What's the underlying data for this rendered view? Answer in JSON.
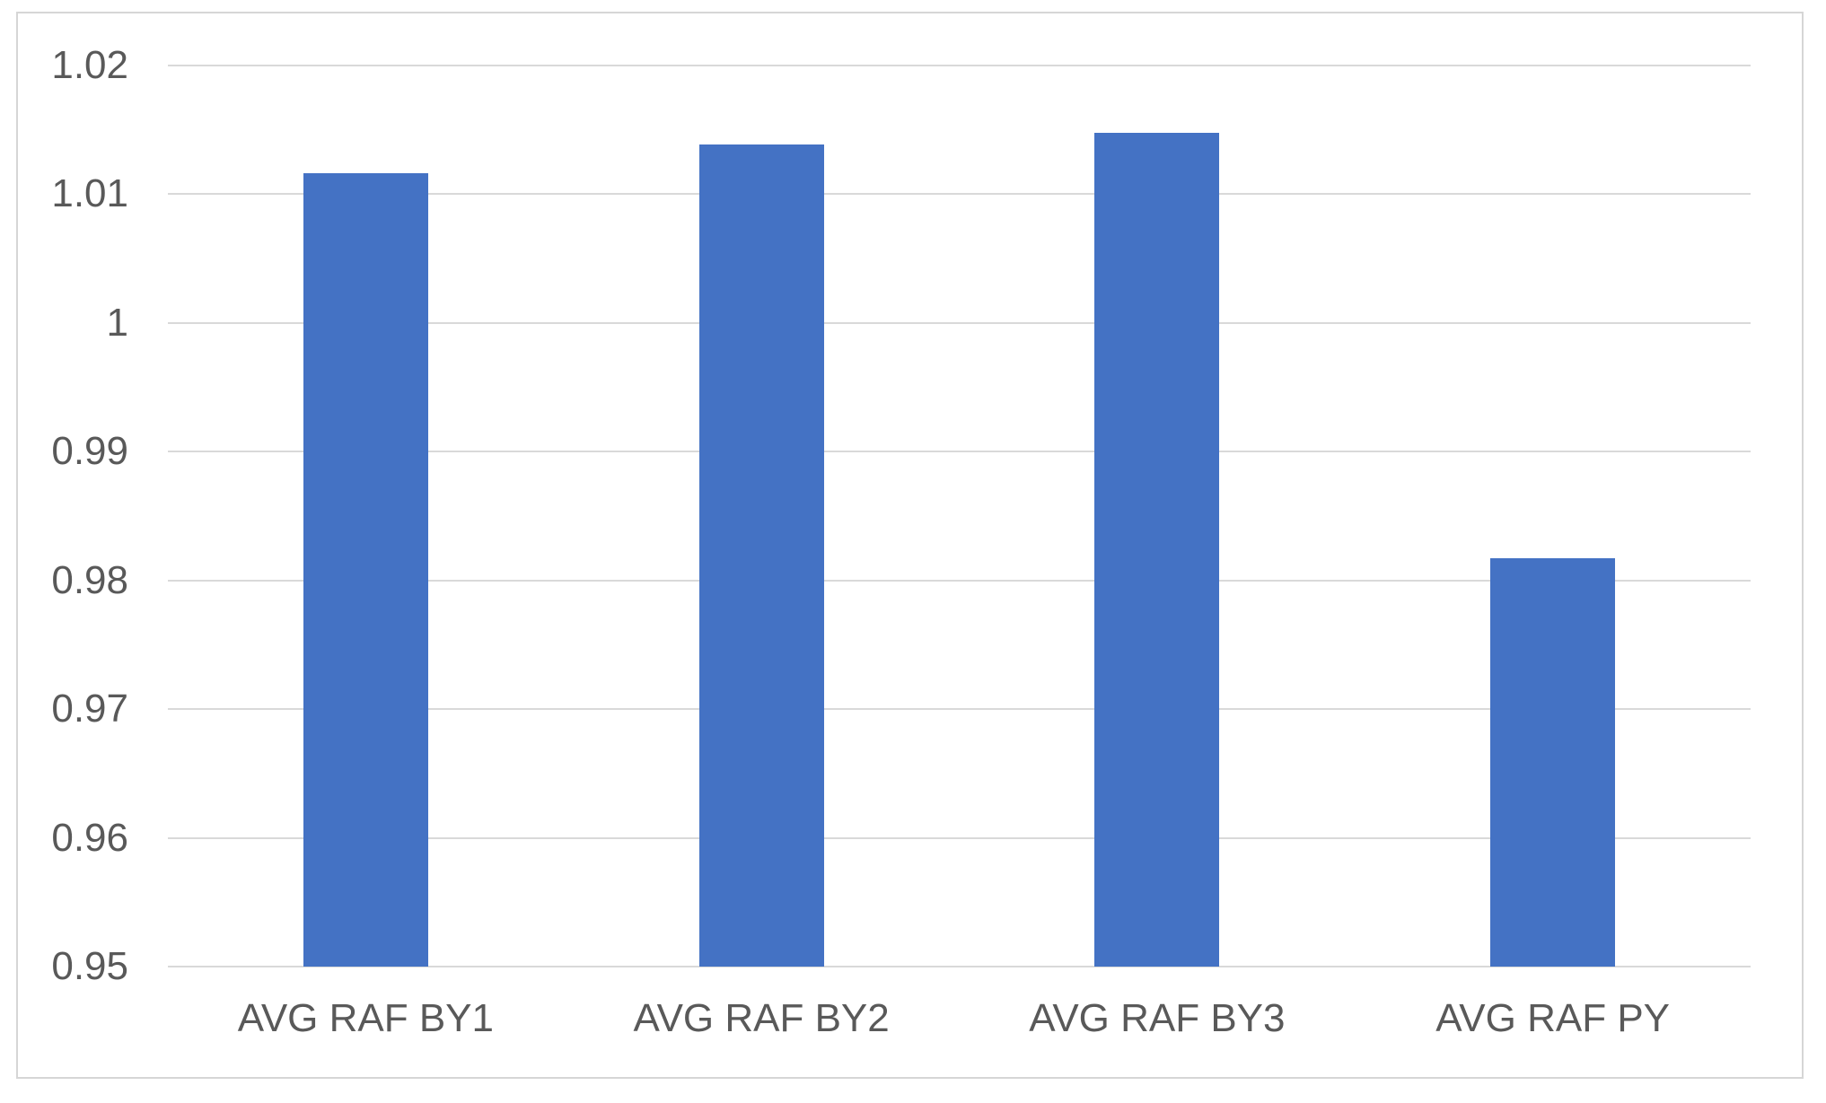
{
  "chart_data": {
    "type": "bar",
    "categories": [
      "AVG RAF BY1",
      "AVG RAF BY2",
      "AVG RAF BY3",
      "AVG RAF PY"
    ],
    "values": [
      1.0116,
      1.0139,
      1.0148,
      0.9817
    ],
    "title": "",
    "xlabel": "",
    "ylabel": "",
    "ylim": [
      0.95,
      1.02
    ],
    "yticks": [
      1.02,
      1.01,
      1,
      0.99,
      0.98,
      0.97,
      0.96,
      0.95
    ],
    "ytick_labels": [
      "1.02",
      "1.01",
      "1",
      "0.99",
      "0.98",
      "0.97",
      "0.96",
      "0.95"
    ],
    "grid": true,
    "legend": false,
    "colors": {
      "bar": "#4472c4",
      "gridline": "#d9d9d9",
      "frame_border": "#d6d6d6",
      "axis_text": "#595959",
      "background": "#ffffff"
    }
  }
}
